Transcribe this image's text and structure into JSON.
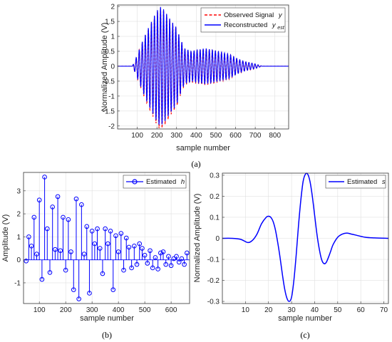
{
  "charts": [
    {
      "panel_label": "(a)",
      "chart_data": {
        "type": "line",
        "xlabel": "sample number",
        "ylabel": "Normalized Amplitude (V)",
        "xlim": [
          0,
          870
        ],
        "ylim": [
          -2.1,
          2.05
        ],
        "xticks": [
          100,
          200,
          300,
          400,
          500,
          600,
          700,
          800
        ],
        "yticks": [
          -2,
          -1.5,
          -1,
          -0.5,
          0,
          0.5,
          1,
          1.5,
          2
        ],
        "grid": true,
        "legend_position": "top-right",
        "series": [
          {
            "name": "Observed Signal",
            "name_sub": "y",
            "color": "#ff0000",
            "style": "dashed"
          },
          {
            "name": "Reconstructed",
            "name_sub": "y",
            "subscript": "est",
            "color": "#0000ff",
            "style": "solid"
          }
        ],
        "signal": {
          "start": 75,
          "end": 735,
          "period": 15.5,
          "envelope": [
            [
              75,
              0
            ],
            [
              95,
              0.3
            ],
            [
              130,
              0.9
            ],
            [
              165,
              1.4
            ],
            [
              195,
              1.8
            ],
            [
              215,
              2.0
            ],
            [
              235,
              1.9
            ],
            [
              255,
              1.7
            ],
            [
              275,
              1.5
            ],
            [
              300,
              1.3
            ],
            [
              315,
              1.0
            ],
            [
              340,
              0.6
            ],
            [
              375,
              0.5
            ],
            [
              410,
              0.55
            ],
            [
              445,
              0.6
            ],
            [
              480,
              0.55
            ],
            [
              510,
              0.5
            ],
            [
              540,
              0.45
            ],
            [
              570,
              0.4
            ],
            [
              610,
              0.25
            ],
            [
              650,
              0.15
            ],
            [
              700,
              0.08
            ],
            [
              735,
              0
            ]
          ]
        }
      }
    },
    {
      "panel_label": "(b)",
      "chart_data": {
        "type": "stem",
        "xlabel": "sample number",
        "ylabel": "Amplitude (V)",
        "xlim": [
          40,
          670
        ],
        "ylim": [
          -1.9,
          3.8
        ],
        "xticks": [
          100,
          200,
          300,
          400,
          500,
          600
        ],
        "yticks": [
          -1,
          0,
          1,
          2,
          3
        ],
        "grid": true,
        "legend_position": "top-right",
        "series": [
          {
            "name": "Estimated",
            "name_sub": "h",
            "color": "#0000ff"
          }
        ],
        "x": [
          50,
          60,
          70,
          80,
          90,
          100,
          110,
          120,
          130,
          140,
          150,
          160,
          170,
          180,
          190,
          200,
          210,
          220,
          230,
          240,
          250,
          260,
          270,
          280,
          290,
          300,
          310,
          320,
          330,
          340,
          350,
          360,
          370,
          380,
          390,
          400,
          410,
          420,
          430,
          440,
          450,
          460,
          470,
          480,
          490,
          500,
          510,
          520,
          530,
          540,
          550,
          560,
          570,
          580,
          590,
          600,
          610,
          620,
          630,
          640,
          650,
          660
        ],
        "values": [
          -0.05,
          1.0,
          0.6,
          1.85,
          0.25,
          2.6,
          -0.85,
          3.6,
          1.35,
          -0.55,
          2.3,
          0.45,
          2.75,
          0.4,
          1.85,
          -0.45,
          1.75,
          0.35,
          -1.3,
          2.65,
          -1.7,
          2.4,
          0.25,
          1.45,
          -1.45,
          1.25,
          0.7,
          1.35,
          0.5,
          -0.6,
          1.35,
          0.7,
          1.25,
          -1.3,
          1.05,
          0.35,
          1.15,
          -0.45,
          0.95,
          0.55,
          -0.35,
          0.6,
          -0.2,
          0.7,
          0.5,
          0.2,
          -0.15,
          0.4,
          -0.35,
          0.1,
          -0.4,
          0.3,
          0.35,
          -0.2,
          0.15,
          -0.25,
          0.05,
          0.15,
          -0.1,
          0.05,
          -0.2,
          0.3
        ]
      }
    },
    {
      "panel_label": "(c)",
      "chart_data": {
        "type": "line",
        "xlabel": "sample number",
        "ylabel": "Normalized Amplitude (V)",
        "xlim": [
          0,
          72
        ],
        "ylim": [
          -0.31,
          0.31
        ],
        "xticks": [
          10,
          20,
          30,
          40,
          50,
          60,
          70
        ],
        "yticks": [
          -0.3,
          -0.2,
          -0.1,
          0,
          0.1,
          0.2,
          0.3
        ],
        "grid": true,
        "legend_position": "top-right",
        "series": [
          {
            "name": "Estimated",
            "name_sub": "s",
            "color": "#0000ff"
          }
        ],
        "x": [
          0,
          4,
          8,
          11,
          13,
          15,
          17,
          19,
          20,
          21,
          22,
          23,
          24,
          25,
          26,
          27,
          28,
          29,
          30,
          31,
          32,
          33,
          34,
          35,
          36,
          37,
          38,
          39,
          40,
          41,
          42,
          43,
          44,
          45,
          46,
          47,
          48,
          50,
          52,
          54,
          56,
          58,
          62,
          66,
          72
        ],
        "values": [
          0,
          0,
          -0.005,
          -0.02,
          -0.01,
          0.02,
          0.07,
          0.1,
          0.105,
          0.1,
          0.08,
          0.04,
          -0.02,
          -0.09,
          -0.17,
          -0.24,
          -0.285,
          -0.3,
          -0.28,
          -0.2,
          -0.08,
          0.06,
          0.18,
          0.27,
          0.305,
          0.305,
          0.27,
          0.2,
          0.11,
          0.02,
          -0.05,
          -0.1,
          -0.12,
          -0.115,
          -0.09,
          -0.06,
          -0.03,
          0.005,
          0.02,
          0.025,
          0.02,
          0.015,
          0.005,
          0.002,
          0
        ]
      }
    }
  ]
}
